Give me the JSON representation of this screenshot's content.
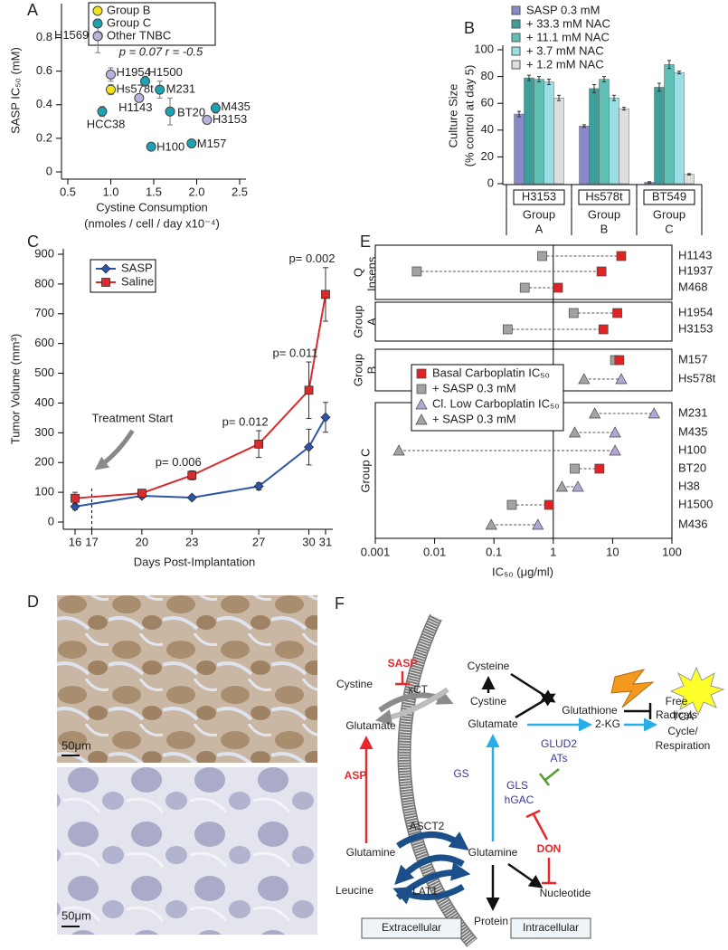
{
  "chart_data": [
    {
      "label": "A",
      "type": "scatter",
      "ylabel": "SASP IC₅₀ (mM)",
      "xlabel": [
        "Cystine Consumption",
        "(nmoles / cell / day x10⁻⁴)"
      ],
      "annotation": "p = 0.07   r = -0.5",
      "xlim": [
        0.5,
        2.5
      ],
      "ylim": [
        0,
        0.97
      ],
      "xticks": [
        0.5,
        {
          "value": 1,
          "label": "1.0"
        },
        1.5,
        {
          "value": 2,
          "label": "2.0"
        },
        2.5
      ],
      "yticks": [
        0,
        0.2,
        0.4,
        0.6,
        0.8
      ],
      "series": [
        {
          "name": "Group B",
          "color": "#f2e318",
          "labels": [
            "H1569",
            "Hs578t"
          ],
          "x": [
            0.85,
            1.0
          ],
          "values": [
            0.81,
            0.49
          ],
          "errors": [
            0.1,
            0.03
          ]
        },
        {
          "name": "Group C",
          "color": "#1ca3b3",
          "labels": [
            "H1500",
            "M231",
            "HCC38",
            "BT20",
            "M435",
            "H100",
            "M157"
          ],
          "x": [
            1.4,
            1.57,
            0.9,
            1.69,
            2.22,
            1.47,
            1.94
          ],
          "values": [
            0.54,
            0.49,
            0.36,
            0.36,
            0.38,
            0.15,
            0.17
          ],
          "errors": [
            0.03,
            0.05,
            0.03,
            0.08,
            0.03,
            0.01,
            0.01
          ]
        },
        {
          "name": "Other TNBC",
          "color": "#b8b3dc",
          "labels": [
            "H1954",
            "H1143",
            "H3153"
          ],
          "x": [
            1.0,
            1.33,
            2.12
          ],
          "values": [
            0.58,
            0.44,
            0.31
          ],
          "errors": [
            0.04,
            0.02,
            0.02
          ]
        }
      ]
    },
    {
      "label": "B",
      "type": "bar",
      "ylabel": [
        "Culture Size",
        "(% control at day 5)"
      ],
      "categories": [
        "H3153",
        "Hs578t",
        "BT549"
      ],
      "groups": [
        [
          "Group",
          "A"
        ],
        [
          "Group",
          "B"
        ],
        [
          "Group",
          "C"
        ]
      ],
      "ylim": [
        0,
        100
      ],
      "yticks": [
        0,
        20,
        40,
        60,
        80,
        100
      ],
      "series": [
        {
          "name": "SASP 0.3 mM",
          "color": "#8b89c9",
          "values": [
            52,
            43,
            1
          ],
          "errors": [
            2,
            1,
            0.5
          ]
        },
        {
          "name": "+ 33.3 mM NAC",
          "color": "#3e9e99",
          "values": [
            79,
            71,
            72
          ],
          "errors": [
            2,
            3,
            3
          ]
        },
        {
          "name": "+ 11.1 mM NAC",
          "color": "#5fc0b6",
          "values": [
            78,
            78,
            89
          ],
          "errors": [
            2,
            2,
            3
          ]
        },
        {
          "name": "+ 3.7 mM NAC",
          "color": "#9adfe6",
          "values": [
            76,
            64,
            83
          ],
          "errors": [
            2,
            2,
            1
          ]
        },
        {
          "name": "+ 1.2 mM NAC",
          "color": "#dedede",
          "values": [
            64,
            56,
            7
          ],
          "errors": [
            2,
            1,
            0.5
          ]
        }
      ]
    },
    {
      "label": "C",
      "type": "line",
      "ylabel": "Tumor Volume (mm³)",
      "xlabel": "Days Post-Implantation",
      "xlim": [
        16,
        31
      ],
      "ylim": [
        0,
        900
      ],
      "xticks": [
        16,
        17,
        20,
        23,
        27,
        30,
        31
      ],
      "yticks": [
        0,
        100,
        200,
        300,
        400,
        500,
        600,
        700,
        800,
        900
      ],
      "x": [
        16,
        20,
        23,
        27,
        30,
        31
      ],
      "series": [
        {
          "name": "SASP",
          "color": "#2e56a8",
          "marker": "diamond",
          "values": [
            52,
            88,
            82,
            120,
            252,
            352
          ],
          "errors": [
            10,
            8,
            8,
            12,
            60,
            50
          ]
        },
        {
          "name": "Saline",
          "color": "#d92b2b",
          "marker": "square",
          "values": [
            80,
            97,
            157,
            262,
            443,
            765
          ],
          "errors": [
            20,
            8,
            15,
            45,
            95,
            90
          ]
        }
      ],
      "marker_line": {
        "x": 17,
        "label": "Treatment Start"
      },
      "annotations": [
        {
          "x": 23,
          "text": "p= 0.006"
        },
        {
          "x": 27,
          "text": "p= 0.012"
        },
        {
          "x": 30,
          "text": "p= 0.011"
        },
        {
          "x": 31,
          "text": "p= 0.002"
        }
      ]
    },
    {
      "label": "E",
      "type": "dot",
      "log_x": true,
      "xlabel": "IC₅₀ (μg/ml)",
      "xlim": [
        0.001,
        100
      ],
      "xticks": [
        0.001,
        0.01,
        0.1,
        1,
        10,
        100
      ],
      "reference_x": 1,
      "categories": [
        "H1143",
        "H1937",
        "M468",
        "H1954",
        "H3153",
        "M157",
        "Hs578t",
        "M231",
        "M435",
        "H100",
        "BT20",
        "H38",
        "H1500",
        "M436"
      ],
      "groups": [
        {
          "label": [
            "Q",
            "Insens."
          ],
          "size": 3
        },
        {
          "label": [
            "Group",
            "A"
          ],
          "size": 2
        },
        {
          "label": [
            "Group",
            "B"
          ],
          "size": 2
        },
        {
          "label": [
            "Group C"
          ],
          "size": 7
        }
      ],
      "series": [
        {
          "name": "Basal Carboplatin IC₅₀",
          "color": "#e02424",
          "marker": "square",
          "values": [
            14,
            6.5,
            1.2,
            12,
            7,
            13,
            null,
            null,
            null,
            null,
            6,
            null,
            0.85,
            null
          ]
        },
        {
          "name": "+ SASP 0.3 mM",
          "color": "#a3a3a3",
          "marker": "square",
          "values": [
            0.65,
            0.005,
            0.33,
            2.2,
            0.17,
            11,
            null,
            null,
            null,
            null,
            2.3,
            null,
            0.2,
            null
          ]
        },
        {
          "name": "Cl. Low Carboplatin IC₅₀",
          "color": "#b3a6d6",
          "marker": "triangle",
          "values": [
            null,
            null,
            null,
            null,
            null,
            null,
            14,
            50,
            11,
            11,
            null,
            2.6,
            null,
            0.55
          ]
        },
        {
          "name": "+ SASP 0.3 mM",
          "color": "#a3a3a3",
          "marker": "triangle",
          "values": [
            null,
            null,
            null,
            null,
            null,
            null,
            3.3,
            5,
            2.3,
            0.0025,
            null,
            1.4,
            null,
            0.09
          ]
        }
      ]
    }
  ],
  "micrographs": {
    "label": "D",
    "scale_bars": [
      "50μm",
      "50μm"
    ]
  },
  "diagram": {
    "label": "F",
    "nodes": {
      "sasp": "SASP",
      "cystine_out": "Cystine",
      "xct": "xCT",
      "glutamate_out": "Glutamate",
      "asp": "ASP",
      "glutamine_out": "Glutamine",
      "leucine": "Leucine",
      "asct2": "ASCT2",
      "lat1": "LAT1",
      "cysteine": "Cysteine",
      "cystine_in": "Cystine",
      "glutamate_in": "Glutamate",
      "gs": "GS",
      "glutamine_in": "Glutamine",
      "protein": "Protein",
      "nucleotide": "Nucleotide",
      "glutathione": "Glutathione",
      "free_radicals": [
        "Free",
        "Radicals"
      ],
      "kg": "2-KG",
      "tca": [
        "TCA",
        "Cycle/",
        "Respiration"
      ],
      "glud2": "GLUD2",
      "ats": "ATs",
      "gls": "GLS",
      "hgac": "hGAC",
      "don": "DON",
      "extracellular": "Extracellular",
      "intracellular": "Intracellular"
    }
  }
}
